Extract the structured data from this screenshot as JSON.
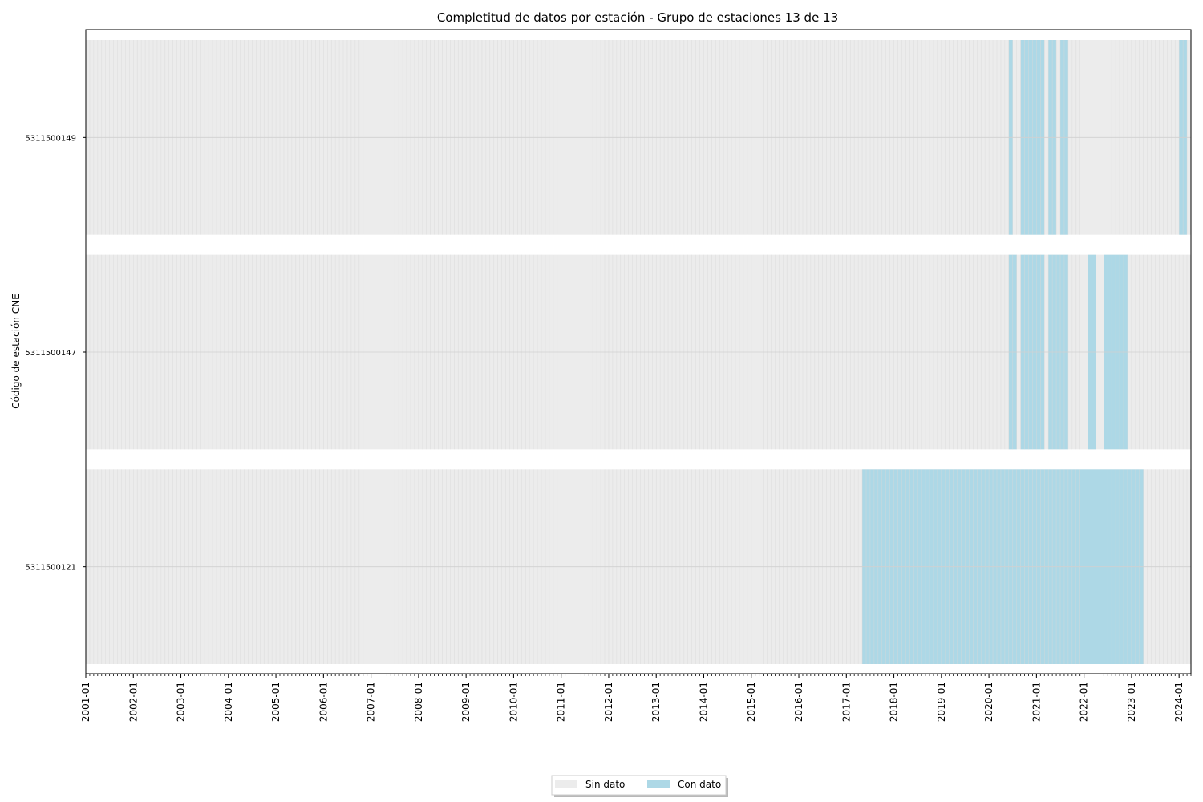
{
  "chart_data": {
    "type": "timeline",
    "title": "Completitud de datos por estación - Grupo de estaciones 13 de 13",
    "xlabel": "",
    "ylabel": "Código de estación CNE",
    "x_range": [
      "2001-01",
      "2024-04"
    ],
    "x_ticks": [
      "2001-01",
      "2002-01",
      "2003-01",
      "2004-01",
      "2005-01",
      "2006-01",
      "2007-01",
      "2008-01",
      "2009-01",
      "2010-01",
      "2011-01",
      "2012-01",
      "2013-01",
      "2014-01",
      "2015-01",
      "2016-01",
      "2017-01",
      "2018-01",
      "2019-01",
      "2020-01",
      "2021-01",
      "2022-01",
      "2023-01",
      "2024-01"
    ],
    "minor_ticks": "monthly",
    "grid": true,
    "legend_position": "bottom-center",
    "legend": [
      {
        "label": "Sin dato",
        "color": "#ececec"
      },
      {
        "label": "Con dato",
        "color": "#add8e6"
      }
    ],
    "colors": {
      "no_data": "#ececec",
      "with_data": "#add8e6",
      "grid": "#d8d8d8"
    },
    "stations": [
      {
        "code": "5311500149",
        "data_ranges": [
          [
            "2020-06",
            "2020-06"
          ],
          [
            "2020-09",
            "2021-02"
          ],
          [
            "2021-04",
            "2021-05"
          ],
          [
            "2021-07",
            "2021-08"
          ],
          [
            "2024-01",
            "2024-02"
          ]
        ]
      },
      {
        "code": "5311500147",
        "data_ranges": [
          [
            "2020-06",
            "2020-07"
          ],
          [
            "2020-09",
            "2021-02"
          ],
          [
            "2021-04",
            "2021-08"
          ],
          [
            "2022-02",
            "2022-03"
          ],
          [
            "2022-06",
            "2022-11"
          ]
        ]
      },
      {
        "code": "5311500121",
        "data_ranges": [
          [
            "2017-05",
            "2023-03"
          ]
        ]
      }
    ]
  }
}
